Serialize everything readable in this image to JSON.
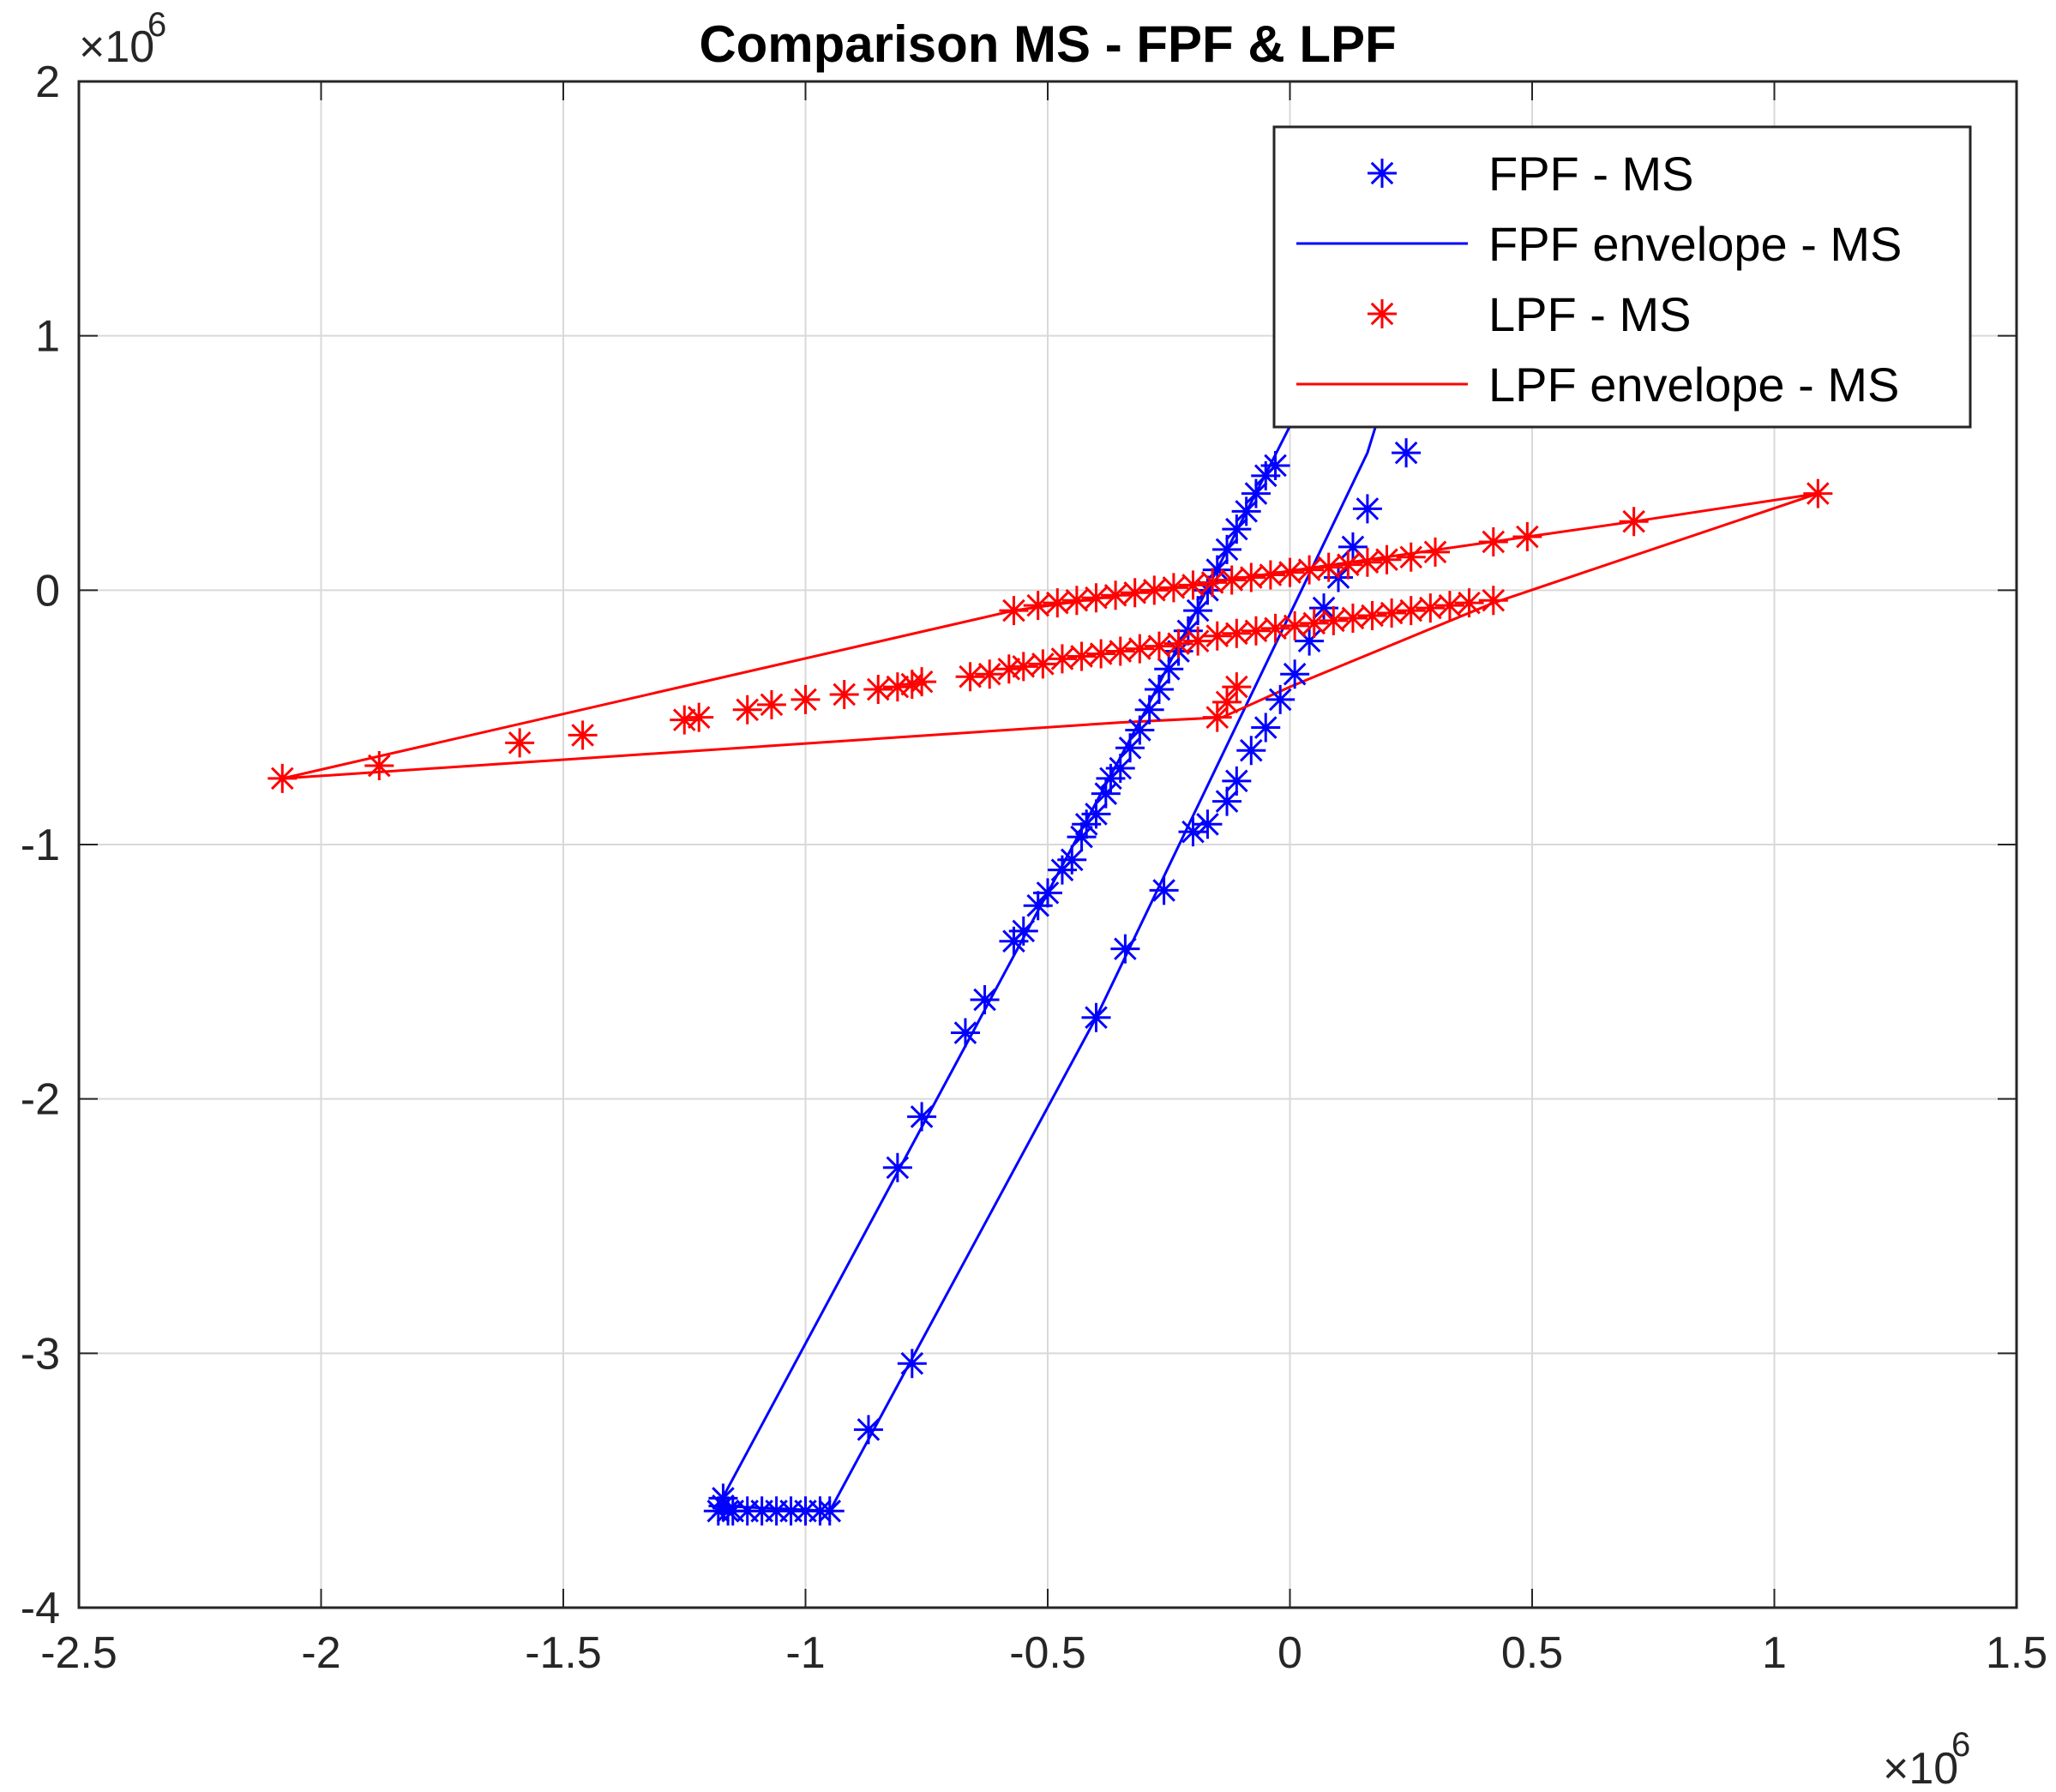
{
  "chart_data": {
    "type": "scatter",
    "title": "Comparison MS - FPF & LPF",
    "xlabel": "",
    "ylabel": "",
    "xlim": [
      -2.5,
      1.5
    ],
    "ylim": [
      -4,
      2
    ],
    "x_multiplier": "×10",
    "x_multiplier_exp": "6",
    "y_multiplier": "×10",
    "y_multiplier_exp": "6",
    "xticks": [
      "-2.5",
      "-2",
      "-1.5",
      "-1",
      "-0.5",
      "0",
      "0.5",
      "1",
      "1.5"
    ],
    "yticks": [
      "-4",
      "-3",
      "-2",
      "-1",
      "0",
      "1",
      "2"
    ],
    "grid": true,
    "legend_position": "top-right",
    "colors": {
      "fpf": "#0000ff",
      "lpf": "#ff0000",
      "grid": "#d9d9d9",
      "axis": "#262626"
    },
    "series": [
      {
        "name": "FPF - MS",
        "kind": "markers",
        "color": "#0000ff",
        "x": [
          -1.18,
          -1.17,
          -1.16,
          -1.15,
          -1.12,
          -1.09,
          -1.06,
          -1.03,
          -1.0,
          -0.97,
          -0.95,
          -1.17,
          -0.81,
          -0.76,
          -0.67,
          -0.63,
          -0.57,
          -0.55,
          -0.52,
          -0.5,
          -0.47,
          -0.45,
          -0.43,
          -0.42,
          -0.4,
          -0.38,
          -0.37,
          -0.35,
          -0.33,
          -0.31,
          -0.29,
          -0.27,
          -0.25,
          -0.23,
          -0.21,
          -0.19,
          -0.17,
          -0.15,
          -0.13,
          -0.11,
          -0.09,
          -0.07,
          -0.05,
          -0.03,
          -0.87,
          -0.78,
          -0.4,
          -0.34,
          -0.26,
          -0.2,
          -0.17,
          -0.13,
          -0.11,
          -0.08,
          -0.05,
          -0.02,
          0.01,
          0.04,
          0.07,
          0.1,
          0.13,
          0.16,
          0.24
        ],
        "y": [
          -3.62,
          -3.6,
          -3.62,
          -3.62,
          -3.62,
          -3.62,
          -3.62,
          -3.62,
          -3.62,
          -3.62,
          -3.62,
          -3.57,
          -2.27,
          -2.07,
          -1.74,
          -1.61,
          -1.38,
          -1.34,
          -1.24,
          -1.19,
          -1.1,
          -1.06,
          -0.97,
          -0.92,
          -0.88,
          -0.8,
          -0.74,
          -0.7,
          -0.62,
          -0.55,
          -0.47,
          -0.39,
          -0.31,
          -0.24,
          -0.16,
          -0.08,
          0.0,
          0.08,
          0.16,
          0.24,
          0.31,
          0.38,
          0.45,
          0.49,
          -3.3,
          -3.04,
          -1.68,
          -1.41,
          -1.18,
          -0.95,
          -0.92,
          -0.83,
          -0.75,
          -0.63,
          -0.54,
          -0.43,
          -0.33,
          -0.2,
          -0.07,
          0.05,
          0.17,
          0.32,
          0.54
        ]
      },
      {
        "name": "FPF envelope - MS",
        "kind": "line",
        "color": "#0000ff",
        "x": [
          -1.18,
          -0.3,
          0.02,
          0.3,
          0.38,
          0.3,
          0.16,
          -0.4,
          -0.95,
          -1.18
        ],
        "y": [
          -3.6,
          -0.48,
          0.72,
          1.62,
          1.8,
          1.4,
          0.54,
          -1.68,
          -3.62,
          -3.6
        ]
      },
      {
        "name": "LPF - MS",
        "kind": "markers",
        "color": "#ff0000",
        "x": [
          -2.08,
          -1.88,
          -1.59,
          -1.46,
          -1.25,
          -1.22,
          -1.12,
          -1.07,
          -1.0,
          -0.92,
          -0.85,
          -0.81,
          -0.78,
          -0.76,
          -0.66,
          -0.62,
          -0.58,
          -0.55,
          -0.51,
          -0.47,
          -0.43,
          -0.39,
          -0.35,
          -0.31,
          -0.27,
          -0.23,
          -0.19,
          -0.15,
          -0.11,
          -0.07,
          -0.03,
          0.01,
          0.05,
          0.09,
          0.13,
          0.17,
          0.21,
          0.25,
          0.29,
          0.33,
          0.37,
          0.42,
          -0.57,
          -0.52,
          -0.48,
          -0.44,
          -0.4,
          -0.36,
          -0.32,
          -0.28,
          -0.24,
          -0.2,
          -0.16,
          -0.12,
          -0.08,
          -0.04,
          0.0,
          0.04,
          0.08,
          0.12,
          0.16,
          0.2,
          0.25,
          0.3,
          0.42,
          0.49,
          0.71,
          1.09,
          -0.15,
          -0.13,
          -0.11
        ],
        "y": [
          -0.74,
          -0.69,
          -0.6,
          -0.57,
          -0.51,
          -0.5,
          -0.47,
          -0.45,
          -0.43,
          -0.41,
          -0.39,
          -0.38,
          -0.37,
          -0.36,
          -0.34,
          -0.33,
          -0.31,
          -0.3,
          -0.29,
          -0.27,
          -0.26,
          -0.25,
          -0.24,
          -0.23,
          -0.22,
          -0.21,
          -0.2,
          -0.18,
          -0.17,
          -0.16,
          -0.15,
          -0.14,
          -0.13,
          -0.12,
          -0.11,
          -0.1,
          -0.09,
          -0.08,
          -0.07,
          -0.06,
          -0.05,
          -0.04,
          -0.08,
          -0.06,
          -0.05,
          -0.04,
          -0.03,
          -0.02,
          -0.01,
          0.0,
          0.01,
          0.02,
          0.03,
          0.04,
          0.05,
          0.06,
          0.07,
          0.08,
          0.09,
          0.1,
          0.11,
          0.12,
          0.13,
          0.15,
          0.19,
          0.21,
          0.27,
          0.38,
          -0.5,
          -0.44,
          -0.38
        ]
      },
      {
        "name": "LPF envelope - MS",
        "kind": "line",
        "color": "#ff0000",
        "x": [
          -2.08,
          -0.57,
          0.49,
          0.71,
          1.09,
          0.42,
          0.0,
          -0.14,
          -0.35,
          -2.08
        ],
        "y": [
          -0.74,
          -0.08,
          0.21,
          0.27,
          0.38,
          -0.05,
          -0.38,
          -0.5,
          -0.52,
          -0.74
        ]
      }
    ]
  }
}
